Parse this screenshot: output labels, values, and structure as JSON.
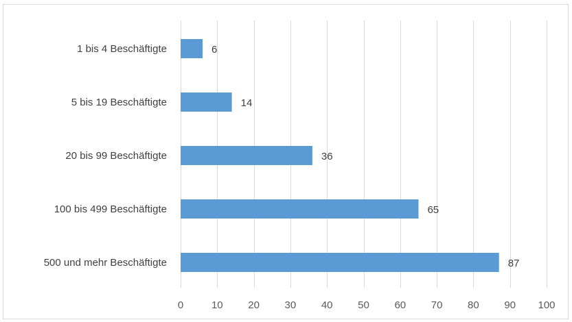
{
  "chart_data": {
    "type": "bar",
    "orientation": "horizontal",
    "categories": [
      "1 bis 4 Beschäftigte",
      "5 bis 19 Beschäftigte",
      "20 bis 99 Beschäftigte",
      "100 bis 499 Beschäftigte",
      "500 und mehr Beschäftigte"
    ],
    "values": [
      6,
      14,
      36,
      65,
      87
    ],
    "data_labels": [
      "6",
      "14",
      "36",
      "65",
      "87"
    ],
    "xlim": [
      0,
      100
    ],
    "x_ticks": [
      0,
      10,
      20,
      30,
      40,
      50,
      60,
      70,
      80,
      90,
      100
    ],
    "x_tick_labels": [
      "0",
      "10",
      "20",
      "30",
      "40",
      "50",
      "60",
      "70",
      "80",
      "90",
      "100"
    ],
    "grid": true,
    "bar_color": "#5b9bd5",
    "grid_color": "#d9d9d9"
  }
}
